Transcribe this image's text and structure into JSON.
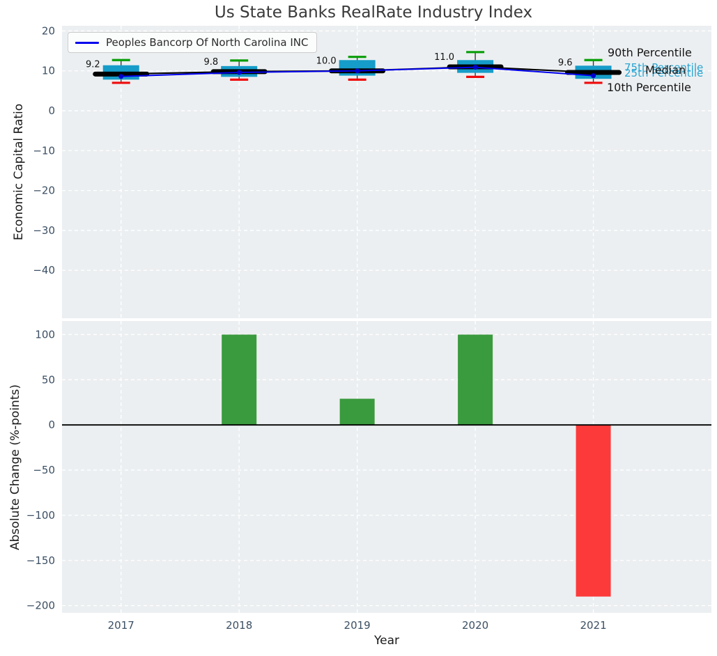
{
  "title": "Us State Banks RealRate Industry Index",
  "colors": {
    "axes_background": "#eceff1",
    "grid": "#ffffff",
    "tick_label": "#3c4f63",
    "text": "#1a1a1a",
    "box_fill": "#169cc9",
    "whisker_line": "#3a3a3a",
    "p90_cap": "#089e08",
    "p10_cap": "#ee0a0a",
    "median_line": "#000000",
    "company_line": "#0000ee",
    "company_marker": "#0000cc",
    "bar_positive": "#3a9a3e",
    "bar_negative": "#fc3a3a",
    "annotation_cyan": "#2aa5d2"
  },
  "legend": {
    "label": "Peoples Bancorp Of North Carolina INC"
  },
  "annotations": {
    "p90": "90th Percentile",
    "p75": "75th Percentile",
    "median": "Median",
    "p25": "25th Percentile",
    "p10": "10th Percentile"
  },
  "chart_data": [
    {
      "type": "boxplot-line",
      "title": "Us State Banks RealRate Industry Index",
      "ylabel": "Economic Capital Ratio",
      "x": [
        2017,
        2018,
        2019,
        2020,
        2021
      ],
      "xlim": [
        2016.5,
        2022.0
      ],
      "ylim": [
        -52,
        21.3
      ],
      "yticks": [
        20,
        10,
        0,
        -10,
        -20,
        -30,
        -40
      ],
      "grid": true,
      "legend_position": "upper left",
      "boxes": [
        {
          "year": 2017,
          "p10": 7.0,
          "q1": 7.8,
          "median": 9.2,
          "q3": 11.4,
          "p90": 12.7
        },
        {
          "year": 2018,
          "p10": 7.8,
          "q1": 8.5,
          "median": 9.8,
          "q3": 11.2,
          "p90": 12.6
        },
        {
          "year": 2019,
          "p10": 7.8,
          "q1": 8.8,
          "median": 10.0,
          "q3": 12.7,
          "p90": 13.5
        },
        {
          "year": 2020,
          "p10": 8.5,
          "q1": 9.5,
          "median": 11.0,
          "q3": 12.7,
          "p90": 14.7
        },
        {
          "year": 2021,
          "p10": 7.0,
          "q1": 8.0,
          "median": 9.6,
          "q3": 11.3,
          "p90": 12.7
        }
      ],
      "median_labels": [
        "9.2",
        "9.8",
        "10.0",
        "11.0",
        "9.6"
      ],
      "series": [
        {
          "name": "Peoples Bancorp Of North Carolina INC",
          "values": [
            8.6,
            9.6,
            10.0,
            10.9,
            8.8
          ]
        },
        {
          "name": "Median",
          "values": [
            9.2,
            9.8,
            10.0,
            11.0,
            9.6
          ]
        }
      ]
    },
    {
      "type": "bar",
      "ylabel": "Absolute Change (%-points)",
      "xlabel": "Year",
      "categories": [
        "2017",
        "2018",
        "2019",
        "2020",
        "2021"
      ],
      "values": [
        null,
        100,
        29,
        100,
        -190
      ],
      "yticks": [
        100,
        50,
        0,
        -50,
        -100,
        -150,
        -200
      ],
      "ylim": [
        -208,
        115
      ],
      "grid": true
    }
  ]
}
